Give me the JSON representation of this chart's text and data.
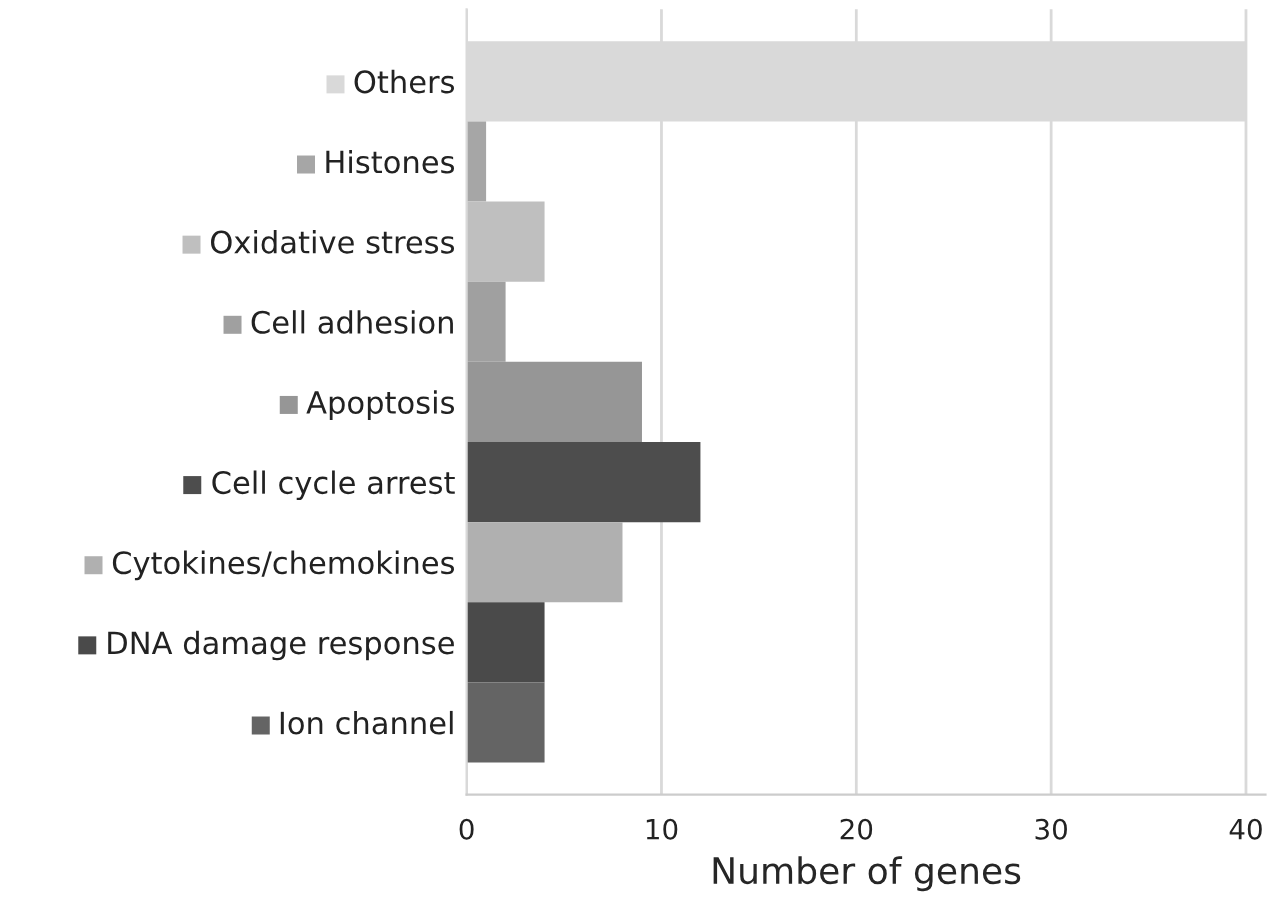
{
  "chart_data": {
    "type": "bar",
    "orientation": "horizontal",
    "xlabel": "Number of genes",
    "categories": [
      "Others",
      "Histones",
      "Oxidative stress",
      "Cell adhesion",
      "Apoptosis",
      "Cell cycle arrest",
      "Cytokines/chemokines",
      "DNA damage response",
      "Ion channel"
    ],
    "values": [
      40,
      1,
      4,
      2,
      9,
      12,
      8,
      4,
      4
    ],
    "colors": [
      "#d9d9d9",
      "#a6a6a6",
      "#bfbfbf",
      "#a0a0a0",
      "#969696",
      "#4d4d4d",
      "#b0b0b0",
      "#4a4a4a",
      "#646464"
    ],
    "xlim": [
      0,
      41
    ],
    "xticks": [
      0,
      10,
      20,
      30,
      40
    ],
    "grid": "x"
  }
}
